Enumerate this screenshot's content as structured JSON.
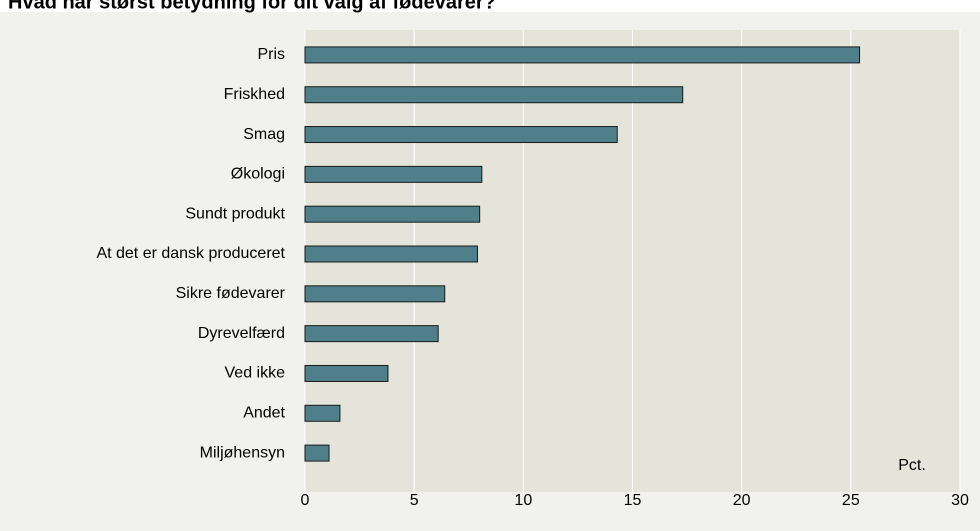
{
  "chart_data": {
    "type": "barh",
    "title": "Hvad har størst betydning for dit valg af fødevarer?",
    "categories": [
      "Pris",
      "Friskhed",
      "Smag",
      "Økologi",
      "Sundt produkt",
      "At det er dansk produceret",
      "Sikre fødevarer",
      "Dyrevelfærd",
      "Ved ikke",
      "Andet",
      "Miljøhensyn"
    ],
    "values": [
      25.4,
      17.3,
      14.3,
      8.1,
      8.0,
      7.9,
      6.4,
      6.1,
      3.8,
      1.6,
      1.1
    ],
    "color": "#4f7f8a",
    "xlabel": "Pct.",
    "xlim": [
      0,
      30
    ],
    "xticks": [
      0,
      5,
      10,
      15,
      20,
      25,
      30
    ],
    "grid": true
  }
}
